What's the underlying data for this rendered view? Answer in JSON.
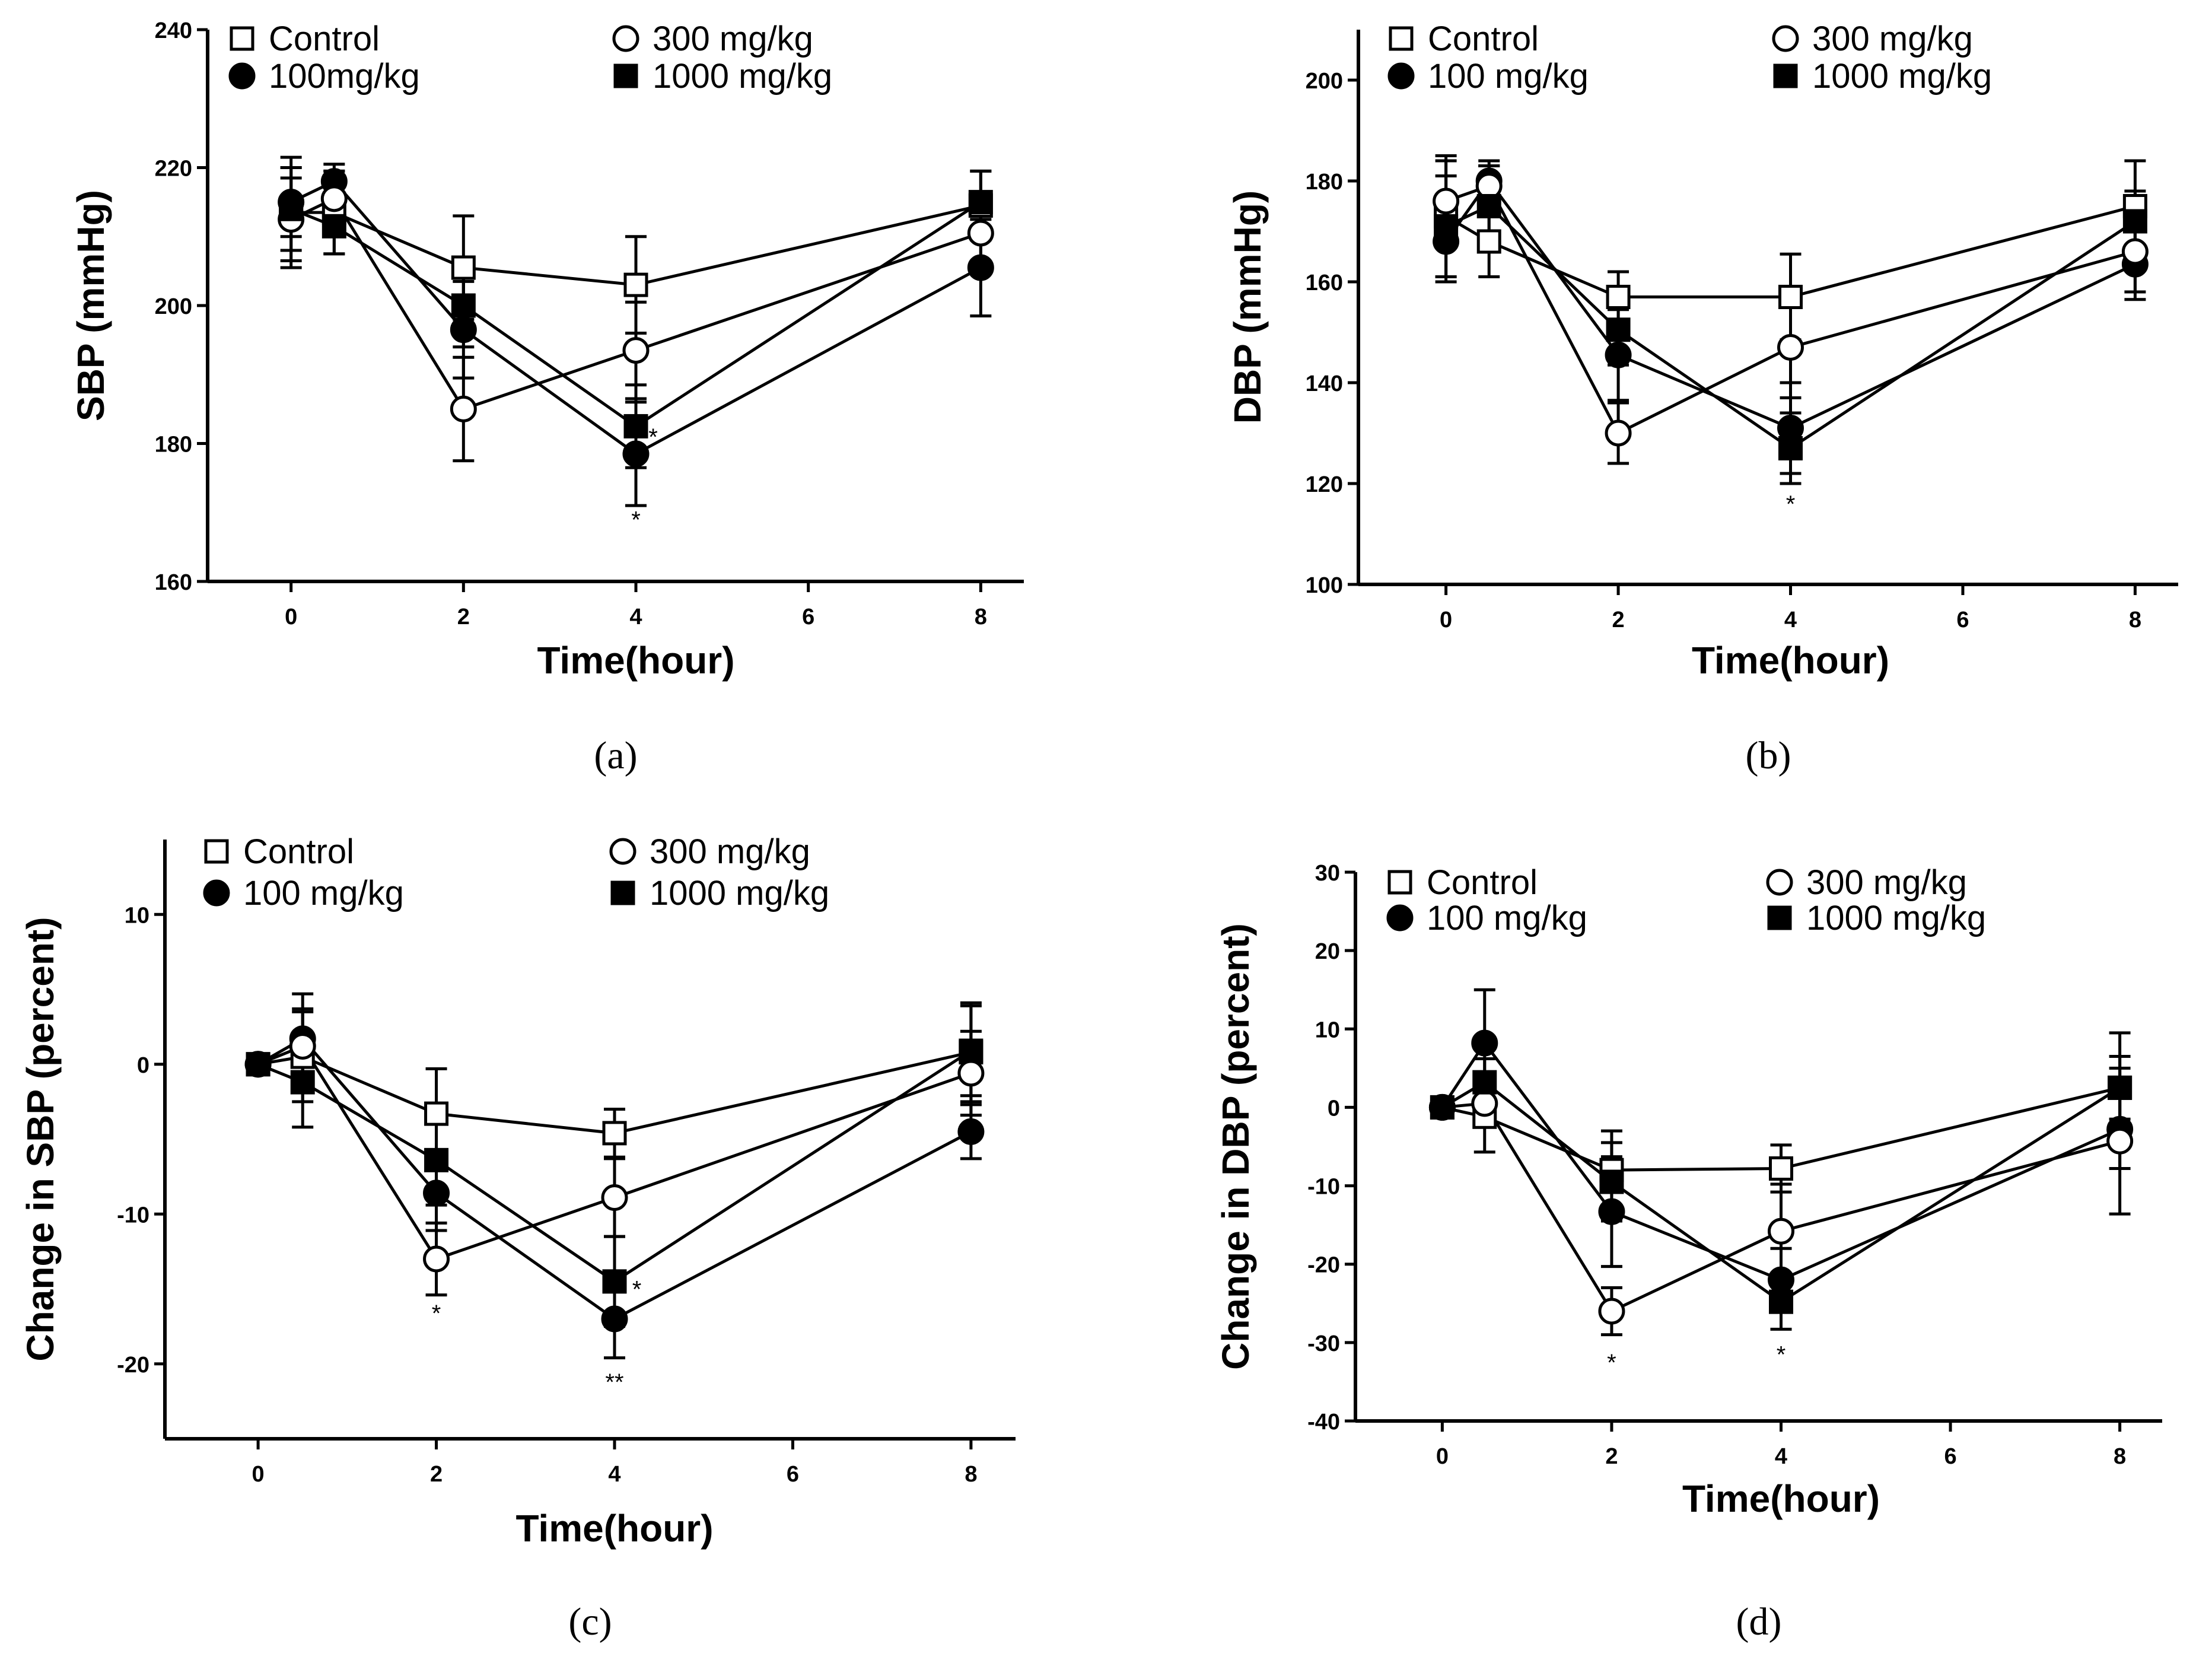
{
  "chart_data": [
    {
      "type": "line",
      "panel": "(a)",
      "xlabel": "Time(hour)",
      "ylabel": "SBP (mmHg)",
      "xlim": [
        -0.5,
        8.5
      ],
      "ylim": [
        160,
        240
      ],
      "xticks": [
        "0",
        "2",
        "4",
        "6",
        "8"
      ],
      "yticks": [
        "160",
        "180",
        "200",
        "220",
        "240"
      ],
      "legend": [
        "Control",
        "100mg/kg",
        "300 mg/kg",
        "1000 mg/kg"
      ],
      "x": [
        0,
        0.5,
        2,
        4,
        8
      ],
      "series": [
        {
          "name": "Control",
          "marker": "open-square",
          "values": [
            213.5,
            213.5,
            205.5,
            203,
            214.5
          ],
          "errors": [
            8,
            6,
            7.5,
            7,
            5
          ]
        },
        {
          "name": "100mg/kg",
          "marker": "filled-circle",
          "values": [
            215,
            218,
            196.5,
            178.5,
            205.5
          ],
          "errors": [
            5,
            2.5,
            7,
            7.5,
            7
          ]
        },
        {
          "name": "300 mg/kg",
          "marker": "open-circle",
          "values": [
            212.5,
            215.5,
            185,
            193.5,
            210.5
          ],
          "errors": [
            6,
            4,
            7.5,
            7,
            5
          ]
        },
        {
          "name": "1000 mg/kg",
          "marker": "filled-square",
          "values": [
            214,
            211.5,
            200,
            182.5,
            215
          ],
          "errors": [
            6,
            4,
            6,
            6,
            4.5
          ]
        }
      ],
      "annotations": [
        {
          "text": "*",
          "x": 4.2,
          "y": 181
        },
        {
          "text": "*",
          "x": 4,
          "y": 169
        }
      ]
    },
    {
      "type": "line",
      "panel": "(b)",
      "xlabel": "Time(hour)",
      "ylabel": "DBP (mmHg)",
      "xlim": [
        -0.5,
        8.5
      ],
      "ylim": [
        100,
        210
      ],
      "xticks": [
        "0",
        "2",
        "4",
        "6",
        "8"
      ],
      "yticks": [
        "100",
        "120",
        "140",
        "160",
        "180",
        "200"
      ],
      "legend": [
        "Control",
        "100 mg/kg",
        "300 mg/kg",
        "1000 mg/kg"
      ],
      "x": [
        0,
        0.5,
        2,
        4,
        8
      ],
      "series": [
        {
          "name": "Control",
          "marker": "open-square",
          "values": [
            173,
            168,
            157,
            157,
            175
          ],
          "errors": [
            12,
            7,
            5,
            8.5,
            9
          ]
        },
        {
          "name": "100 mg/kg",
          "marker": "filled-circle",
          "values": [
            168,
            180,
            145.5,
            131,
            163.5
          ],
          "errors": [
            8,
            4,
            9,
            9,
            7
          ]
        },
        {
          "name": "300 mg/kg",
          "marker": "open-circle",
          "values": [
            176,
            179,
            130,
            147,
            166
          ],
          "errors": [
            8,
            4,
            6,
            10,
            8
          ]
        },
        {
          "name": "1000 mg/kg",
          "marker": "filled-square",
          "values": [
            171,
            175,
            150.5,
            127,
            172
          ],
          "errors": [
            10,
            8,
            7,
            7,
            6
          ]
        }
      ],
      "annotations": [
        {
          "text": "*",
          "x": 4,
          "y": 116
        }
      ]
    },
    {
      "type": "line",
      "panel": "(c)",
      "xlabel": "Time(hour)",
      "ylabel": "Change in SBP (percent)",
      "xlim": [
        -0.5,
        8.5
      ],
      "ylim": [
        -25,
        15
      ],
      "xticks": [
        "0",
        "2",
        "4",
        "6",
        "8"
      ],
      "yticks": [
        "-20",
        "-10",
        "0",
        "10"
      ],
      "legend": [
        "Control",
        "100 mg/kg",
        "300 mg/kg",
        "1000 mg/kg"
      ],
      "x": [
        0,
        0.5,
        2,
        4,
        8
      ],
      "series": [
        {
          "name": "Control",
          "marker": "open-square",
          "values": [
            0,
            0.5,
            -3.3,
            -4.6,
            0.8
          ],
          "errors": [
            0,
            3,
            3,
            1.6,
            3.3
          ]
        },
        {
          "name": "100 mg/kg",
          "marker": "filled-circle",
          "values": [
            0,
            1.7,
            -8.6,
            -17,
            -4.5
          ],
          "errors": [
            0,
            3,
            2.5,
            2.6,
            1.8
          ]
        },
        {
          "name": "300 mg/kg",
          "marker": "open-circle",
          "values": [
            0,
            1.2,
            -13,
            -8.9,
            -0.6
          ],
          "errors": [
            0,
            2.5,
            2.4,
            2.6,
            2.8
          ]
        },
        {
          "name": "1000 mg/kg",
          "marker": "filled-square",
          "values": [
            0,
            -1.2,
            -6.4,
            -14.5,
            0.9
          ],
          "errors": [
            0,
            3,
            3,
            3,
            3
          ]
        }
      ],
      "annotations": [
        {
          "text": "*",
          "x": 2,
          "y": -16.6
        },
        {
          "text": "*",
          "x": 4.25,
          "y": -15
        },
        {
          "text": "**",
          "x": 4,
          "y": -21.2
        }
      ]
    },
    {
      "type": "line",
      "panel": "(d)",
      "xlabel": "Time(hour)",
      "ylabel": "Change in DBP (percent)",
      "xlim": [
        -0.5,
        8.5
      ],
      "ylim": [
        -40,
        30
      ],
      "xticks": [
        "0",
        "2",
        "4",
        "6",
        "8"
      ],
      "yticks": [
        "-40",
        "-30",
        "-20",
        "-10",
        "0",
        "10",
        "20",
        "30"
      ],
      "legend": [
        "Control",
        "100 mg/kg",
        "300 mg/kg",
        "1000 mg/kg"
      ],
      "x": [
        0,
        0.5,
        2,
        4,
        8
      ],
      "series": [
        {
          "name": "Control",
          "marker": "open-square",
          "values": [
            0,
            -1.2,
            -8,
            -7.8,
            2.5
          ],
          "errors": [
            0,
            4.5,
            5,
            3,
            7
          ]
        },
        {
          "name": "100 mg/kg",
          "marker": "filled-circle",
          "values": [
            0,
            8.2,
            -13.3,
            -22,
            -2.8
          ],
          "errors": [
            0,
            6.8,
            7,
            4,
            5
          ]
        },
        {
          "name": "300 mg/kg",
          "marker": "open-circle",
          "values": [
            0,
            0.5,
            -26,
            -15.8,
            -4.3
          ],
          "errors": [
            0,
            3,
            3,
            6,
            9.3
          ]
        },
        {
          "name": "1000 mg/kg",
          "marker": "filled-square",
          "values": [
            0,
            3.2,
            -9.5,
            -24.8,
            2.5
          ],
          "errors": [
            0,
            3,
            5,
            3.5,
            4
          ]
        }
      ],
      "annotations": [
        {
          "text": "*",
          "x": 2,
          "y": -32.5
        },
        {
          "text": "*",
          "x": 4,
          "y": -31.5
        }
      ]
    }
  ]
}
